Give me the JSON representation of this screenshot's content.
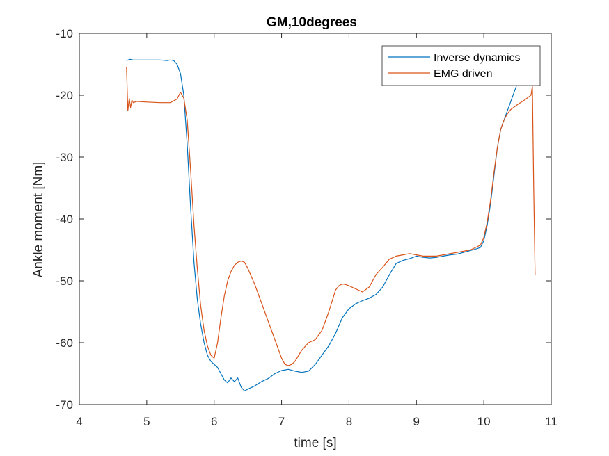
{
  "chart_data": {
    "type": "line",
    "title": "GM,10degrees",
    "xlabel": "time  [s]",
    "ylabel": "Ankle moment [Nm]",
    "xlim": [
      4,
      11
    ],
    "ylim": [
      -70,
      -10
    ],
    "xticks": [
      4,
      5,
      6,
      7,
      8,
      9,
      10,
      11
    ],
    "yticks": [
      -70,
      -60,
      -50,
      -40,
      -30,
      -20,
      -10
    ],
    "grid": false,
    "legend": "top-right",
    "series": [
      {
        "name": "Inverse dynamics",
        "color": "#0072BD",
        "x": [
          4.7,
          4.75,
          4.8,
          5.0,
          5.2,
          5.3,
          5.35,
          5.4,
          5.45,
          5.5,
          5.55,
          5.6,
          5.65,
          5.7,
          5.75,
          5.8,
          5.85,
          5.9,
          5.95,
          6.0,
          6.05,
          6.1,
          6.15,
          6.2,
          6.25,
          6.3,
          6.35,
          6.4,
          6.45,
          6.5,
          6.6,
          6.7,
          6.8,
          6.9,
          7.0,
          7.1,
          7.2,
          7.3,
          7.4,
          7.5,
          7.6,
          7.7,
          7.8,
          7.9,
          8.0,
          8.1,
          8.2,
          8.3,
          8.4,
          8.5,
          8.6,
          8.7,
          8.8,
          8.9,
          9.0,
          9.1,
          9.2,
          9.3,
          9.4,
          9.5,
          9.6,
          9.7,
          9.8,
          9.9,
          9.95,
          10.0,
          10.05,
          10.1,
          10.15,
          10.2,
          10.25,
          10.3,
          10.35,
          10.4,
          10.45,
          10.5,
          10.55
        ],
        "y": [
          -14.4,
          -14.2,
          -14.3,
          -14.3,
          -14.3,
          -14.4,
          -14.3,
          -14.4,
          -15.0,
          -16.5,
          -20.0,
          -28.0,
          -38.0,
          -47.0,
          -53.0,
          -57.0,
          -60.0,
          -62.0,
          -63.0,
          -63.5,
          -64.0,
          -65.0,
          -66.0,
          -66.5,
          -65.7,
          -66.3,
          -65.7,
          -67.2,
          -67.8,
          -67.5,
          -67.0,
          -66.3,
          -65.8,
          -65.0,
          -64.5,
          -64.3,
          -64.6,
          -64.8,
          -64.6,
          -63.5,
          -62.0,
          -60.5,
          -58.5,
          -56.0,
          -54.5,
          -53.7,
          -53.2,
          -52.8,
          -52.2,
          -51.0,
          -49.0,
          -47.2,
          -46.7,
          -46.4,
          -46.0,
          -46.2,
          -46.3,
          -46.2,
          -46.0,
          -45.8,
          -45.7,
          -45.4,
          -45.1,
          -44.8,
          -44.6,
          -43.5,
          -41.0,
          -37.5,
          -33.0,
          -28.5,
          -25.5,
          -24.0,
          -22.5,
          -21.0,
          -19.5,
          -18.0,
          -17.5
        ]
      },
      {
        "name": "EMG driven",
        "color": "#D95319",
        "x": [
          4.7,
          4.72,
          4.74,
          4.76,
          4.78,
          4.8,
          4.85,
          5.0,
          5.2,
          5.35,
          5.45,
          5.5,
          5.55,
          5.6,
          5.65,
          5.7,
          5.75,
          5.8,
          5.85,
          5.9,
          5.95,
          6.0,
          6.05,
          6.1,
          6.15,
          6.2,
          6.25,
          6.3,
          6.35,
          6.4,
          6.45,
          6.5,
          6.6,
          6.7,
          6.8,
          6.9,
          7.0,
          7.05,
          7.1,
          7.15,
          7.2,
          7.3,
          7.4,
          7.5,
          7.6,
          7.7,
          7.8,
          7.85,
          7.9,
          7.95,
          8.0,
          8.1,
          8.2,
          8.3,
          8.4,
          8.5,
          8.6,
          8.7,
          8.8,
          8.9,
          9.0,
          9.1,
          9.2,
          9.3,
          9.4,
          9.5,
          9.6,
          9.7,
          9.8,
          9.9,
          9.95,
          10.0,
          10.05,
          10.1,
          10.15,
          10.2,
          10.25,
          10.3,
          10.35,
          10.4,
          10.5,
          10.6,
          10.7,
          10.72,
          10.74,
          10.76
        ],
        "y": [
          -15.5,
          -22.5,
          -20.5,
          -22.0,
          -20.8,
          -21.2,
          -21.0,
          -21.1,
          -21.2,
          -21.2,
          -20.6,
          -19.5,
          -20.5,
          -24.0,
          -32.0,
          -41.0,
          -48.0,
          -54.0,
          -58.0,
          -60.5,
          -62.0,
          -62.5,
          -60.0,
          -56.0,
          -52.5,
          -50.0,
          -48.5,
          -47.5,
          -47.0,
          -46.8,
          -47.0,
          -48.0,
          -50.5,
          -53.5,
          -56.5,
          -59.5,
          -62.5,
          -63.5,
          -63.7,
          -63.5,
          -63.0,
          -61.2,
          -60.0,
          -59.5,
          -58.0,
          -55.0,
          -51.5,
          -50.8,
          -50.5,
          -50.6,
          -50.8,
          -51.3,
          -51.8,
          -51.0,
          -49.0,
          -47.8,
          -46.5,
          -46.0,
          -45.8,
          -45.6,
          -45.8,
          -46.0,
          -46.0,
          -46.0,
          -45.8,
          -45.6,
          -45.4,
          -45.2,
          -45.0,
          -44.5,
          -44.2,
          -43.0,
          -40.5,
          -37.0,
          -32.5,
          -28.5,
          -25.5,
          -24.0,
          -23.0,
          -22.3,
          -21.5,
          -20.8,
          -20.0,
          -18.5,
          -35.0,
          -49.0
        ]
      }
    ]
  }
}
